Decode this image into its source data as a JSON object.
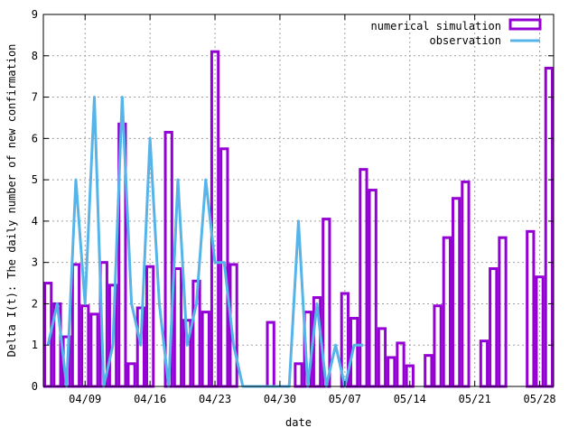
{
  "chart_data": {
    "type": "bar",
    "xlabel": "date",
    "ylabel": "Delta I(t): The daily number of new confirmation",
    "ylim": [
      0,
      9
    ],
    "yticks": [
      0,
      1,
      2,
      3,
      4,
      5,
      6,
      7,
      8,
      9
    ],
    "xticks": [
      "04/09",
      "04/16",
      "04/23",
      "04/30",
      "05/07",
      "05/14",
      "05/21",
      "05/28"
    ],
    "grid": true,
    "legend_position": "top-right",
    "colors": {
      "simulation": "#9400D3",
      "observation": "#56B4E9"
    },
    "x_start": "04/05",
    "series": [
      {
        "name": "numerical simulation",
        "kind": "bar",
        "values": [
          2.5,
          2.0,
          1.2,
          2.95,
          1.95,
          1.75,
          3.0,
          2.45,
          6.35,
          0.55,
          1.9,
          2.9,
          0,
          6.15,
          2.85,
          1.6,
          2.55,
          1.8,
          8.1,
          5.75,
          2.95,
          0,
          0,
          0,
          1.55,
          0,
          0,
          0.55,
          1.8,
          2.15,
          4.05,
          0,
          2.25,
          1.65,
          5.25,
          4.75,
          1.4,
          0.7,
          1.05,
          0.5,
          0,
          0.75,
          1.95,
          3.6,
          4.55,
          4.95,
          0,
          1.1,
          2.85,
          3.6,
          0,
          0,
          3.75,
          2.65,
          7.7
        ]
      },
      {
        "name": "observation",
        "kind": "line",
        "values": [
          1,
          2,
          0,
          5,
          2,
          7,
          0,
          1,
          7,
          2,
          1,
          6,
          2,
          0,
          5,
          1,
          2,
          5,
          3,
          3,
          1,
          0,
          0,
          0,
          0,
          0,
          0,
          4,
          0,
          2,
          0,
          1,
          0,
          1,
          1
        ]
      }
    ]
  }
}
